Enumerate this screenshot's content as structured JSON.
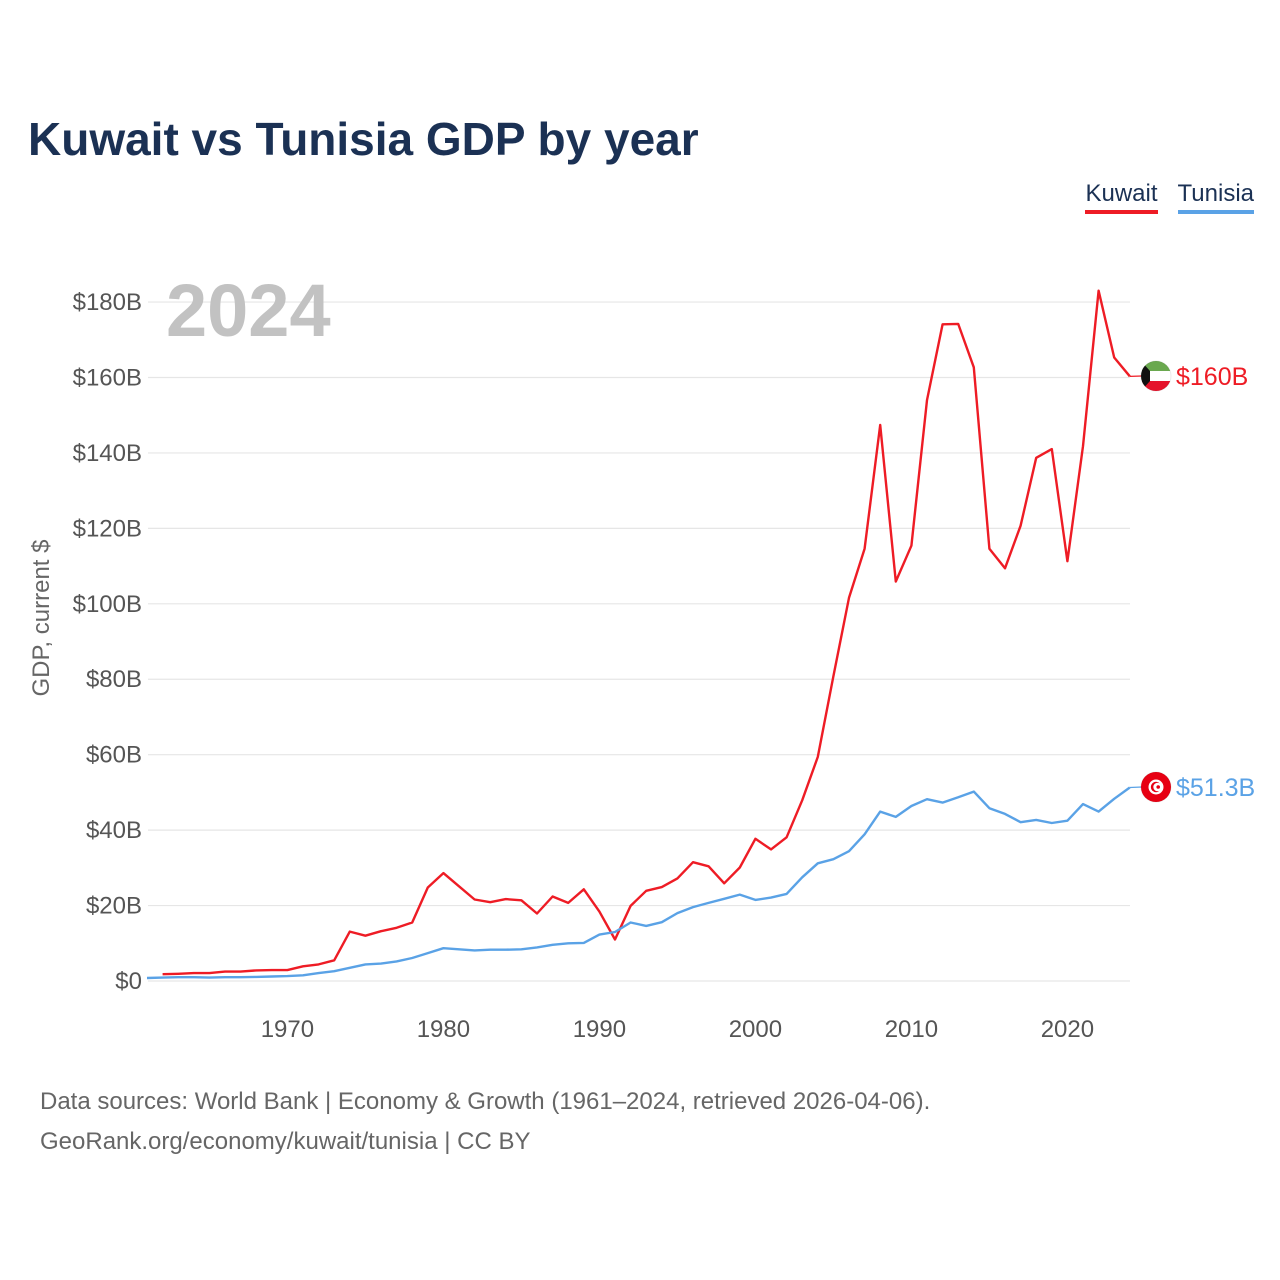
{
  "title": "Kuwait vs Tunisia GDP by year",
  "year_label": "2024",
  "legend": {
    "kuwait": "Kuwait",
    "tunisia": "Tunisia"
  },
  "source": {
    "line1": "Data sources: World Bank | Economy & Growth (1961–2024, retrieved 2026-04-06).",
    "line2": "GeoRank.org/economy/kuwait/tunisia | CC BY"
  },
  "colors": {
    "kuwait": "#ee1c25",
    "tunisia": "#5aa2e6",
    "grid": "#e6e6e6",
    "title": "#1b3154"
  },
  "chart_data": {
    "type": "line",
    "title": "Kuwait vs Tunisia GDP by year",
    "ylabel": "GDP, current $",
    "xlabel": "",
    "xlim": [
      1961,
      2024
    ],
    "ylim": [
      0,
      185
    ],
    "y_unit": "billion US$",
    "x_ticks": [
      1970,
      1980,
      1990,
      2000,
      2010,
      2020
    ],
    "y_ticks": [
      {
        "value": 0,
        "label": "$0"
      },
      {
        "value": 20,
        "label": "$20B"
      },
      {
        "value": 40,
        "label": "$40B"
      },
      {
        "value": 60,
        "label": "$60B"
      },
      {
        "value": 80,
        "label": "$80B"
      },
      {
        "value": 100,
        "label": "$100B"
      },
      {
        "value": 120,
        "label": "$120B"
      },
      {
        "value": 140,
        "label": "$140B"
      },
      {
        "value": 160,
        "label": "$160B"
      },
      {
        "value": 180,
        "label": "$180B"
      }
    ],
    "series": [
      {
        "name": "Kuwait",
        "color": "#ee1c25",
        "end_label": "$160B",
        "x": [
          1962,
          1963,
          1964,
          1965,
          1966,
          1967,
          1968,
          1969,
          1970,
          1971,
          1972,
          1973,
          1974,
          1975,
          1976,
          1977,
          1978,
          1979,
          1980,
          1981,
          1982,
          1983,
          1984,
          1985,
          1986,
          1987,
          1988,
          1989,
          1990,
          1991,
          1992,
          1993,
          1994,
          1995,
          1996,
          1997,
          1998,
          1999,
          2000,
          2001,
          2002,
          2003,
          2004,
          2005,
          2006,
          2007,
          2008,
          2009,
          2010,
          2011,
          2012,
          2013,
          2014,
          2015,
          2016,
          2017,
          2018,
          2019,
          2020,
          2021,
          2022,
          2023,
          2024
        ],
        "values": [
          1.8,
          1.9,
          2.1,
          2.1,
          2.5,
          2.5,
          2.8,
          2.9,
          2.9,
          3.9,
          4.4,
          5.5,
          13.1,
          12.0,
          13.2,
          14.1,
          15.5,
          24.8,
          28.6,
          25.1,
          21.6,
          20.9,
          21.7,
          21.4,
          17.9,
          22.4,
          20.7,
          24.3,
          18.4,
          11.0,
          19.9,
          23.9,
          24.9,
          27.2,
          31.5,
          30.4,
          25.9,
          30.1,
          37.7,
          34.9,
          38.1,
          47.9,
          59.4,
          80.8,
          101.6,
          114.6,
          147.4,
          105.9,
          115.4,
          154.0,
          174.1,
          174.2,
          162.7,
          114.6,
          109.4,
          120.7,
          138.7,
          141.0,
          111.3,
          141.8,
          183.0,
          165.3,
          160.3
        ]
      },
      {
        "name": "Tunisia",
        "color": "#5aa2e6",
        "end_label": "$51.3B",
        "x": [
          1961,
          1962,
          1963,
          1964,
          1965,
          1966,
          1967,
          1968,
          1969,
          1970,
          1971,
          1972,
          1973,
          1974,
          1975,
          1976,
          1977,
          1978,
          1979,
          1980,
          1981,
          1982,
          1983,
          1984,
          1985,
          1986,
          1987,
          1988,
          1989,
          1990,
          1991,
          1992,
          1993,
          1994,
          1995,
          1996,
          1997,
          1998,
          1999,
          2000,
          2001,
          2002,
          2003,
          2004,
          2005,
          2006,
          2007,
          2008,
          2009,
          2010,
          2011,
          2012,
          2013,
          2014,
          2015,
          2016,
          2017,
          2018,
          2019,
          2020,
          2021,
          2022,
          2023,
          2024
        ],
        "values": [
          0.8,
          0.9,
          1.0,
          1.0,
          0.9,
          1.0,
          1.0,
          1.1,
          1.2,
          1.3,
          1.5,
          2.1,
          2.6,
          3.5,
          4.4,
          4.6,
          5.2,
          6.1,
          7.4,
          8.7,
          8.4,
          8.1,
          8.3,
          8.3,
          8.4,
          8.9,
          9.6,
          10.0,
          10.1,
          12.3,
          13.0,
          15.5,
          14.6,
          15.6,
          18.0,
          19.6,
          20.7,
          21.8,
          22.9,
          21.5,
          22.1,
          23.1,
          27.5,
          31.2,
          32.3,
          34.4,
          38.9,
          44.9,
          43.5,
          46.4,
          48.2,
          47.3,
          48.7,
          50.2,
          45.8,
          44.3,
          42.1,
          42.7,
          41.9,
          42.5,
          46.9,
          44.9,
          48.3,
          51.3
        ]
      }
    ]
  }
}
